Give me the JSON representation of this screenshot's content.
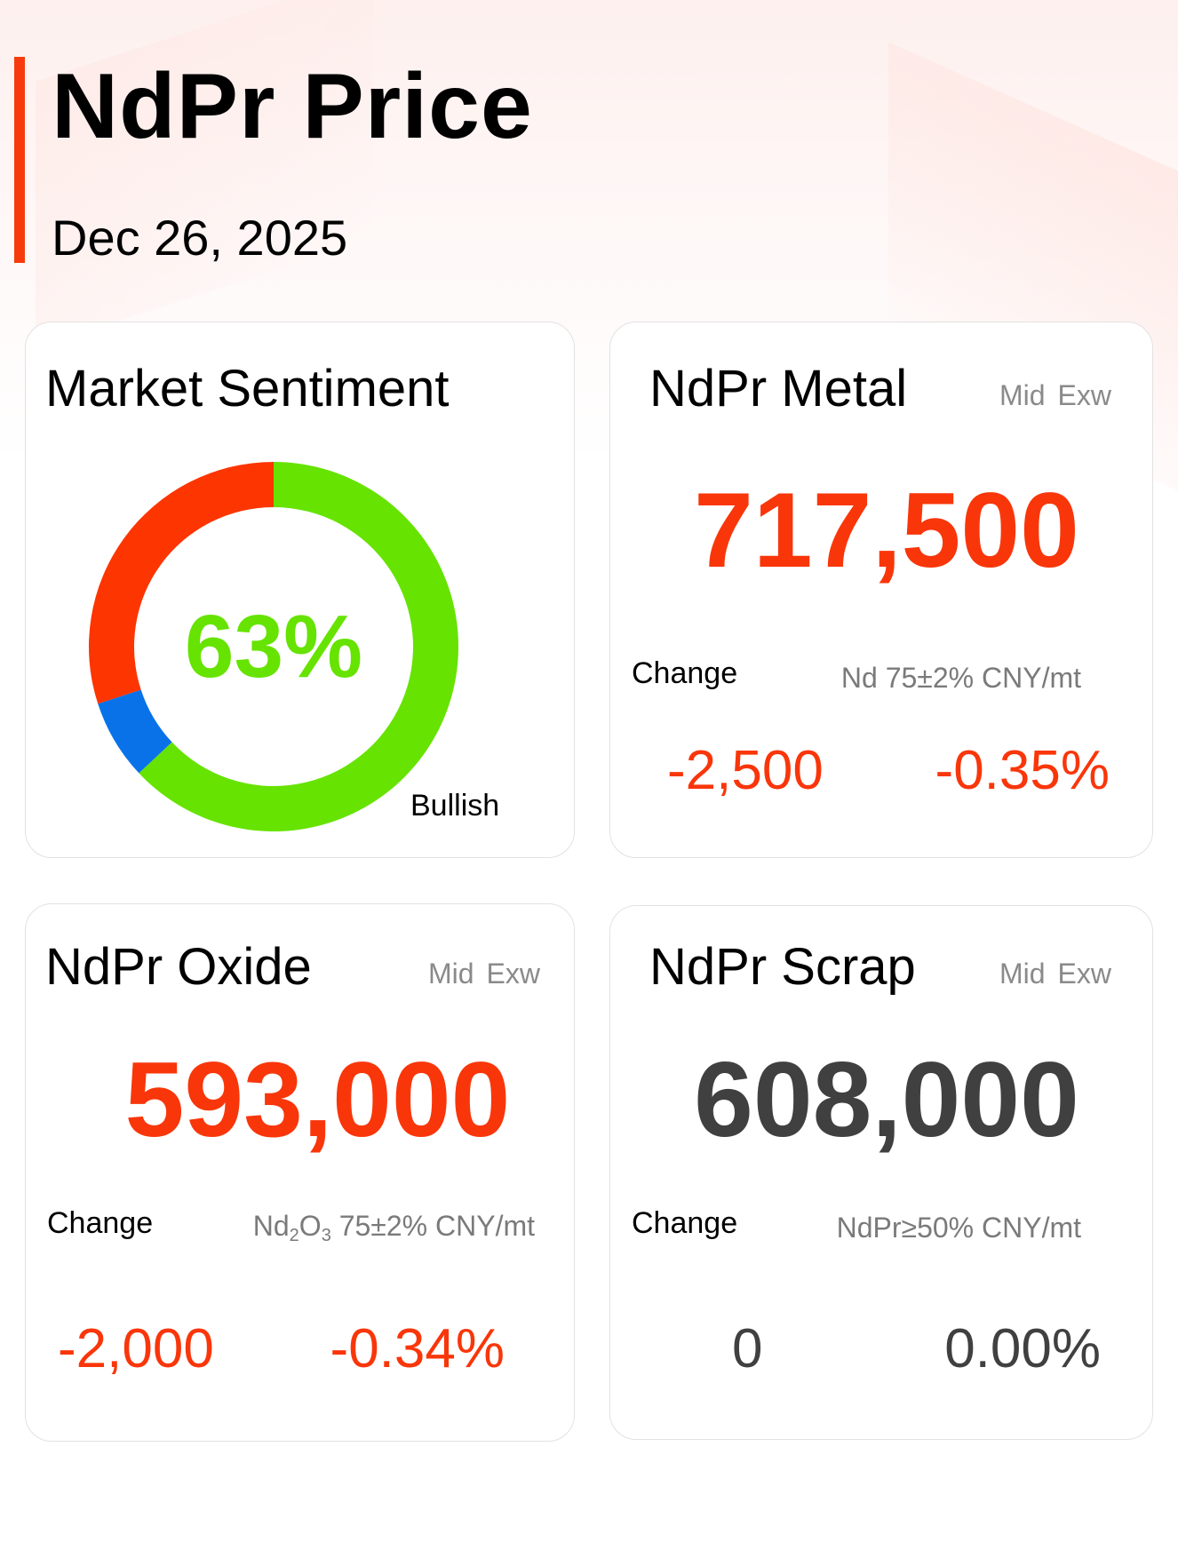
{
  "header": {
    "title": "NdPr Price",
    "date": "Dec 26, 2025"
  },
  "colors": {
    "accent": "#f73a0b",
    "red": "#f9360a",
    "bullish_green": "#66e300",
    "bearish_red": "#fd3500",
    "neutral_blue": "#0a72e8",
    "unchanged_dark": "#404040"
  },
  "sentiment": {
    "title": "Market Sentiment",
    "percent_label": "63%",
    "label": "Bullish",
    "segments": [
      {
        "key": "bullish",
        "value": 63,
        "color": "#66e300"
      },
      {
        "key": "neutral",
        "value": 7,
        "color": "#0a72e8"
      },
      {
        "key": "bearish",
        "value": 30,
        "color": "#fd3500"
      }
    ]
  },
  "metal": {
    "title": "NdPr Metal",
    "tag1": "Mid",
    "tag2": "Exw",
    "price": "717,500",
    "change_label": "Change",
    "spec": "Nd 75±2% CNY/mt",
    "change_abs": "-2,500",
    "change_pct": "-0.35%"
  },
  "oxide": {
    "title": "NdPr Oxide",
    "tag1": "Mid",
    "tag2": "Exw",
    "price": "593,000",
    "change_label": "Change",
    "spec_nd": "Nd",
    "spec_sub1": "2",
    "spec_o": "O",
    "spec_sub2": "3",
    "spec_rest": " 75±2% CNY/mt",
    "change_abs": "-2,000",
    "change_pct": "-0.34%"
  },
  "scrap": {
    "title": "NdPr Scrap",
    "tag1": "Mid",
    "tag2": "Exw",
    "price": "608,000",
    "change_label": "Change",
    "spec": "NdPr≥50% CNY/mt",
    "change_abs": "0",
    "change_pct": "0.00%"
  }
}
